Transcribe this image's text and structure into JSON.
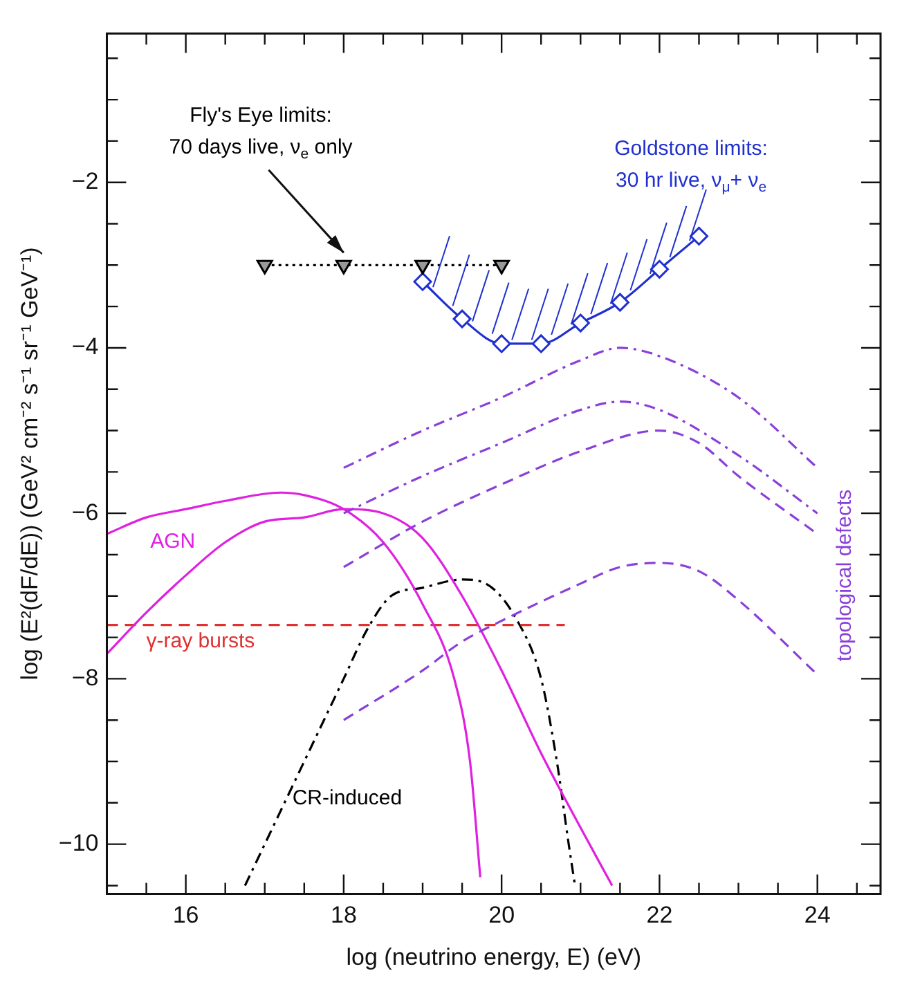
{
  "chart_data": {
    "type": "line",
    "xlabel": "log (neutrino energy, E) (eV)",
    "ylabel": "log (E²(dF/dE)) (GeV² cm⁻² s⁻¹ sr⁻¹ GeV⁻¹)",
    "xlim": [
      15,
      24.8
    ],
    "ylim": [
      -10.6,
      -0.2
    ],
    "xticks": [
      {
        "value": 15.5,
        "label": null
      },
      16,
      {
        "value": 16.5,
        "label": null
      },
      {
        "value": 17,
        "label": null
      },
      {
        "value": 17.5,
        "label": null
      },
      18,
      {
        "value": 18.5,
        "label": null
      },
      {
        "value": 19,
        "label": null
      },
      {
        "value": 19.5,
        "label": null
      },
      20,
      {
        "value": 20.5,
        "label": null
      },
      {
        "value": 21,
        "label": null
      },
      {
        "value": 21.5,
        "label": null
      },
      22,
      {
        "value": 22.5,
        "label": null
      },
      {
        "value": 23,
        "label": null
      },
      {
        "value": 23.5,
        "label": null
      },
      24,
      {
        "value": 24.5,
        "label": null
      }
    ],
    "yticks": [
      {
        "value": -10.5,
        "label": null
      },
      -10,
      {
        "value": -9.5,
        "label": null
      },
      {
        "value": -9,
        "label": null
      },
      {
        "value": -8.5,
        "label": null
      },
      -8,
      {
        "value": -7.5,
        "label": null
      },
      {
        "value": -7,
        "label": null
      },
      {
        "value": -6.5,
        "label": null
      },
      -6,
      {
        "value": -5.5,
        "label": null
      },
      {
        "value": -5,
        "label": null
      },
      {
        "value": -4.5,
        "label": null
      },
      -4,
      {
        "value": -3.5,
        "label": null
      },
      {
        "value": -3,
        "label": null
      },
      {
        "value": -2.5,
        "label": null
      },
      -2,
      {
        "value": -1.5,
        "label": null
      },
      {
        "value": -1,
        "label": null
      },
      {
        "value": -0.5,
        "label": null
      }
    ],
    "grid": false,
    "legend": false,
    "series": [
      {
        "name": "Fly's Eye limits: 70 days live, ν$_{e}$ only",
        "color": "#000000",
        "x": [
          17,
          18,
          19,
          20
        ],
        "values": [
          -3,
          -3,
          -3,
          -3
        ],
        "marker": "triangle",
        "line_style": "dotted"
      },
      {
        "name": "Goldstone limits: 30 hr live, ν$_{μ}$+ ν$_{e}$",
        "color": "#2030d0",
        "x": [
          19,
          19.5,
          20,
          20.5,
          21,
          21.5,
          22,
          22.5
        ],
        "values": [
          -3.2,
          -3.65,
          -3.95,
          -3.95,
          -3.7,
          -3.45,
          -3.05,
          -2.65
        ],
        "marker": "diamond",
        "line_style": "solid"
      },
      {
        "name": "topological defects",
        "color": "#8a40d8",
        "x": [
          18,
          19,
          20,
          21,
          21.5,
          22,
          23,
          24
        ],
        "values": [
          -5.45,
          -5.0,
          -4.6,
          -4.15,
          -4.0,
          -4.1,
          -4.6,
          -5.45
        ],
        "marker": "none",
        "line_style": "dashdot"
      },
      {
        "color": "#8a40d8",
        "x": [
          18,
          19,
          20,
          21,
          21.5,
          22,
          23,
          24
        ],
        "values": [
          -6.0,
          -5.55,
          -5.15,
          -4.75,
          -4.65,
          -4.75,
          -5.3,
          -6.0
        ],
        "marker": "none",
        "line_style": "dashdot"
      },
      {
        "color": "#8a40d8",
        "x": [
          18,
          19,
          20,
          21,
          22,
          22.5,
          23,
          24
        ],
        "values": [
          -6.65,
          -6.1,
          -5.65,
          -5.25,
          -5.0,
          -5.15,
          -5.55,
          -6.25
        ],
        "marker": "none",
        "line_style": "dashed"
      },
      {
        "color": "#8a40d8",
        "x": [
          18,
          19,
          19.5,
          20,
          21,
          21.5,
          22,
          22.5,
          23,
          24
        ],
        "values": [
          -8.5,
          -7.9,
          -7.55,
          -7.3,
          -6.85,
          -6.65,
          -6.6,
          -6.7,
          -7.05,
          -7.95
        ],
        "marker": "none",
        "line_style": "dashed"
      },
      {
        "name": "AGN",
        "color": "#e020e0",
        "x": [
          15,
          15.5,
          16,
          16.5,
          17.2,
          17.5,
          18,
          18.5,
          19,
          19.4,
          19.6,
          19.73
        ],
        "values": [
          -6.25,
          -6.05,
          -5.95,
          -5.85,
          -5.75,
          -5.78,
          -5.95,
          -6.35,
          -7.1,
          -8.0,
          -9.0,
          -10.4
        ],
        "marker": "none",
        "line_style": "solid"
      },
      {
        "color": "#e020e0",
        "x": [
          15,
          15.5,
          16,
          16.5,
          17,
          17.5,
          18,
          18.5,
          19,
          19.5,
          20,
          20.5,
          21,
          21.4
        ],
        "values": [
          -7.7,
          -7.2,
          -6.75,
          -6.35,
          -6.1,
          -6.05,
          -5.95,
          -6.0,
          -6.3,
          -7.0,
          -7.9,
          -8.9,
          -9.8,
          -10.5
        ],
        "marker": "none",
        "line_style": "solid"
      },
      {
        "name": "γ-ray bursts",
        "color": "#e03030",
        "x": [
          15,
          20.8
        ],
        "values": [
          -7.35,
          -7.35
        ],
        "marker": "none",
        "line_style": "dashed"
      },
      {
        "name": "CR-induced",
        "color": "#000000",
        "x": [
          16.75,
          17,
          17.5,
          18,
          18.3,
          18.6,
          19,
          19.5,
          19.8,
          20.2,
          20.5,
          20.7,
          20.85,
          20.93
        ],
        "values": [
          -10.5,
          -10.0,
          -9.0,
          -8.0,
          -7.4,
          -7.0,
          -6.9,
          -6.8,
          -6.85,
          -7.3,
          -8.0,
          -9.0,
          -10.0,
          -10.5
        ],
        "marker": "none",
        "line_style": "dashdot"
      }
    ]
  }
}
